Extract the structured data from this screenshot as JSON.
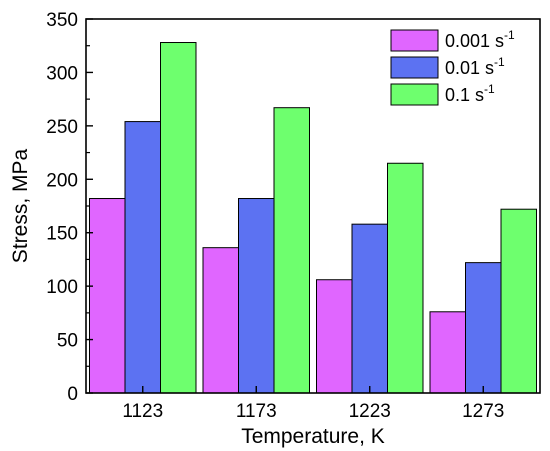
{
  "chart_data": {
    "type": "bar",
    "xlabel": "Temperature, K",
    "ylabel": "Stress, MPa",
    "categories": [
      "1123",
      "1173",
      "1223",
      "1273"
    ],
    "ylim": [
      0,
      350
    ],
    "yticks": [
      "0",
      "50",
      "100",
      "150",
      "200",
      "250",
      "300",
      "350"
    ],
    "legend_position": "top-right",
    "series": [
      {
        "name": "0.001 s",
        "name_superscript": "-1",
        "color": "#e066ff",
        "values": [
          182,
          136,
          106,
          76
        ]
      },
      {
        "name": "0.01 s",
        "name_superscript": "-1",
        "color": "#5c72f2",
        "values": [
          254,
          182,
          158,
          122
        ]
      },
      {
        "name": "0.1 s",
        "name_superscript": "-1",
        "color": "#6eff6e",
        "values": [
          328,
          267,
          215,
          172
        ]
      }
    ]
  }
}
